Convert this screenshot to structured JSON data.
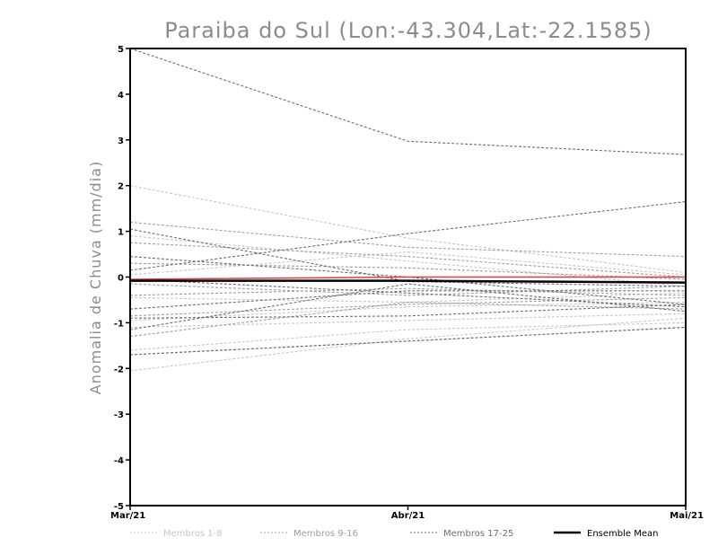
{
  "chart_data": {
    "type": "line",
    "title": "Paraiba do Sul (Lon:-43.304,Lat:-22.1585)",
    "xlabel": "",
    "ylabel": "Anomalia de Chuva (mm/dia)",
    "categories": [
      "Mar/21",
      "Abr/21",
      "Mai/21"
    ],
    "ylim": [
      -5,
      5
    ],
    "yticks": [
      -5,
      -4,
      -3,
      -2,
      -1,
      0,
      1,
      2,
      3,
      4,
      5
    ],
    "grid": false,
    "legend_position": "bottom",
    "colors": {
      "members_1_8": "#c8c8c8",
      "members_9_16": "#a0a0a0",
      "members_17_25": "#6e6e6e",
      "ensemble_mean": "#000000",
      "observed": "#e03c3c"
    },
    "legend": [
      {
        "label": "Membros 1-8",
        "group": "members_1_8"
      },
      {
        "label": "Membros 9-16",
        "group": "members_9_16"
      },
      {
        "label": "Membros 17-25",
        "group": "members_17_25"
      },
      {
        "label": "Ensemble Mean",
        "group": "ensemble_mean"
      }
    ],
    "series": [
      {
        "group": "members_1_8",
        "values": [
          2.0,
          0.85,
          0.1
        ]
      },
      {
        "group": "members_1_8",
        "values": [
          0.9,
          0.35,
          -0.2
        ]
      },
      {
        "group": "members_1_8",
        "values": [
          0.05,
          0.55,
          0.05
        ]
      },
      {
        "group": "members_1_8",
        "values": [
          -0.45,
          -0.55,
          -0.35
        ]
      },
      {
        "group": "members_1_8",
        "values": [
          -1.1,
          -0.95,
          -0.8
        ]
      },
      {
        "group": "members_1_8",
        "values": [
          -1.6,
          -1.15,
          -1.0
        ]
      },
      {
        "group": "members_1_8",
        "values": [
          -2.05,
          -1.35,
          -0.9
        ]
      },
      {
        "group": "members_1_8",
        "values": [
          -0.95,
          -0.65,
          -0.55
        ]
      },
      {
        "group": "members_9_16",
        "values": [
          1.2,
          0.65,
          0.45
        ]
      },
      {
        "group": "members_9_16",
        "values": [
          0.75,
          0.45,
          0.0
        ]
      },
      {
        "group": "members_9_16",
        "values": [
          0.3,
          0.2,
          -0.05
        ]
      },
      {
        "group": "members_9_16",
        "values": [
          -0.15,
          -0.4,
          -0.2
        ]
      },
      {
        "group": "members_9_16",
        "values": [
          -0.4,
          -0.25,
          -0.4
        ]
      },
      {
        "group": "members_9_16",
        "values": [
          -0.85,
          -0.6,
          -0.45
        ]
      },
      {
        "group": "members_9_16",
        "values": [
          -1.3,
          -0.55,
          -0.7
        ]
      },
      {
        "group": "members_9_16",
        "values": [
          -1.7,
          -1.4,
          -1.1
        ]
      },
      {
        "group": "members_17_25",
        "values": [
          5.0,
          2.97,
          2.68
        ]
      },
      {
        "group": "members_17_25",
        "values": [
          0.15,
          0.95,
          1.65
        ]
      },
      {
        "group": "members_17_25",
        "values": [
          1.05,
          -0.1,
          -0.2
        ]
      },
      {
        "group": "members_17_25",
        "values": [
          0.45,
          0.0,
          -0.6
        ]
      },
      {
        "group": "members_17_25",
        "values": [
          -1.15,
          -0.15,
          -0.75
        ]
      },
      {
        "group": "members_17_25",
        "values": [
          -0.9,
          -0.85,
          -0.6
        ]
      },
      {
        "group": "members_17_25",
        "values": [
          -0.05,
          -0.35,
          -0.65
        ]
      },
      {
        "group": "members_17_25",
        "values": [
          -0.7,
          -0.3,
          -0.3
        ]
      },
      {
        "group": "members_17_25",
        "values": [
          -1.7,
          -1.4,
          -1.1
        ]
      },
      {
        "group": "observed",
        "values": [
          -0.05,
          0.0,
          0.0
        ]
      },
      {
        "group": "ensemble_mean",
        "values": [
          -0.08,
          -0.08,
          -0.12
        ]
      }
    ]
  }
}
